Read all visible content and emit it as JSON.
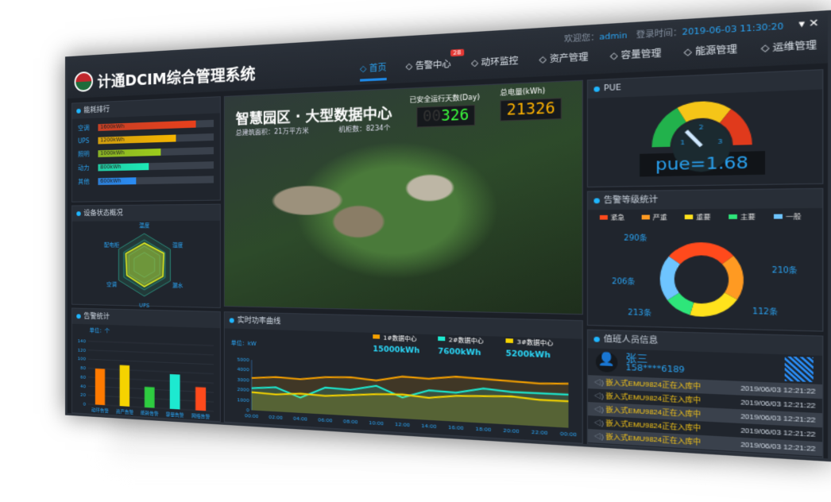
{
  "header": {
    "title": "计通DCIM综合管理系统",
    "welcome_label": "欢迎您：",
    "user": "admin",
    "login_label": "登录时间：",
    "login_time": "2019-06-03 11:30:20",
    "nav": [
      {
        "label": "首页",
        "icon": "home-icon"
      },
      {
        "label": "告警中心",
        "icon": "bell-icon",
        "badge": "28"
      },
      {
        "label": "动环监控",
        "icon": "monitor-icon"
      },
      {
        "label": "资产管理",
        "icon": "server-icon"
      },
      {
        "label": "容量管理",
        "icon": "hourglass-icon"
      },
      {
        "label": "能源管理",
        "icon": "bulb-icon"
      },
      {
        "label": "运维管理",
        "icon": "screen-icon"
      }
    ]
  },
  "energy": {
    "title": "能耗排行",
    "items": [
      {
        "label": "空调",
        "value": "1600kWh",
        "pct": 85,
        "color": "#e8401c"
      },
      {
        "label": "UPS",
        "value": "1200kWh",
        "pct": 68,
        "color": "#f5b400"
      },
      {
        "label": "照明",
        "value": "1000kWh",
        "pct": 55,
        "color": "#9ccc1c"
      },
      {
        "label": "动力",
        "value": "800kWh",
        "pct": 45,
        "color": "#1de9b6"
      },
      {
        "label": "其他",
        "value": "600kWh",
        "pct": 34,
        "color": "#2a8cf4"
      }
    ]
  },
  "radar": {
    "title": "设备状态概况",
    "axes": [
      "温度",
      "湿度",
      "漏水",
      "UPS",
      "空调",
      "配电柜"
    ],
    "values": [
      0.7,
      0.75,
      0.72,
      0.7,
      0.68,
      0.72
    ]
  },
  "alarm_bar": {
    "chart_data": {
      "type": "bar",
      "title": "告警统计",
      "ylabel": "单位：个",
      "categories": [
        "动环告警",
        "资产告警",
        "能耗告警",
        "容量告警",
        "网络告警"
      ],
      "values": [
        80,
        90,
        45,
        75,
        50
      ],
      "colors": [
        "#ff7a00",
        "#f5d300",
        "#2ecc40",
        "#1de9d0",
        "#ff4a1c"
      ],
      "ylim": [
        0,
        140
      ],
      "yticks": [
        0,
        20,
        40,
        60,
        80,
        100,
        120,
        140
      ]
    }
  },
  "center": {
    "title": "智慧园区 · 大型数据中心",
    "area": "总建筑面积：21万平方米",
    "cabinets": "机柜数：8234个",
    "days_label": "已安全运行天数(Day)",
    "days_dim": "00",
    "days": "326",
    "kwh_label": "总电量(kWh)",
    "kwh": "21326"
  },
  "power": {
    "chart_data": {
      "type": "area",
      "title": "实时功率曲线",
      "ylabel": "单位：kW",
      "ylim": [
        0,
        5000
      ],
      "yticks": [
        0,
        1000,
        2000,
        3000,
        4000,
        5000
      ],
      "x": [
        "00:00",
        "02:00",
        "04:00",
        "06:00",
        "08:00",
        "10:00",
        "12:00",
        "14:00",
        "16:00",
        "18:00",
        "20:00",
        "22:00",
        "00:00"
      ],
      "series": [
        {
          "name": "1#数据中心",
          "total": "15000kWh",
          "color": "#f5a000",
          "values": [
            3200,
            3400,
            3300,
            3600,
            3700,
            3500,
            4000,
            3900,
            4200,
            4100,
            4000,
            3900,
            4000
          ]
        },
        {
          "name": "2#数据中心",
          "total": "7600kWh",
          "color": "#1de9d0",
          "values": [
            2200,
            2400,
            1500,
            2600,
            2500,
            3000,
            2000,
            2800,
            2700,
            3200,
            3000,
            3000,
            3000
          ]
        },
        {
          "name": "3#数据中心",
          "total": "5200kWh",
          "color": "#f5d300",
          "values": [
            1800,
            1700,
            1900,
            1800,
            2000,
            2200,
            2300,
            2100,
            2400,
            2500,
            2600,
            2400,
            2400
          ]
        }
      ]
    }
  },
  "pue": {
    "title": "PUE",
    "value": 1.68,
    "text": "pue=1.68",
    "ticks": [
      "1",
      "2",
      "3"
    ]
  },
  "alarm_level": {
    "chart_data": {
      "type": "pie",
      "title": "告警等级统计",
      "categories": [
        "紧急",
        "严重",
        "重要",
        "主要",
        "一般"
      ],
      "values": [
        290,
        206,
        213,
        112,
        210
      ],
      "labels": [
        "290条",
        "206条",
        "213条",
        "112条",
        "210条"
      ],
      "colors": [
        "#ff4a1c",
        "#ff9a22",
        "#ffe21c",
        "#2ee67a",
        "#6ec4ff"
      ]
    }
  },
  "duty": {
    "title": "值班人员信息",
    "name": "张三",
    "phone": "158****6189",
    "rows": [
      {
        "msg": "嵌入式EMU9824正在入库中",
        "time": "2019/06/03 12:21:22"
      },
      {
        "msg": "嵌入式EMU9824正在入库中",
        "time": "2019/06/03 12:21:22"
      },
      {
        "msg": "嵌入式EMU9824正在入库中",
        "time": "2019/06/03 12:21:22"
      },
      {
        "msg": "嵌入式EMU9824正在入库中",
        "time": "2019/06/03 12:21:22"
      },
      {
        "msg": "嵌入式EMU9824正在入库中",
        "time": "2019/06/03 12:21:22"
      }
    ]
  }
}
